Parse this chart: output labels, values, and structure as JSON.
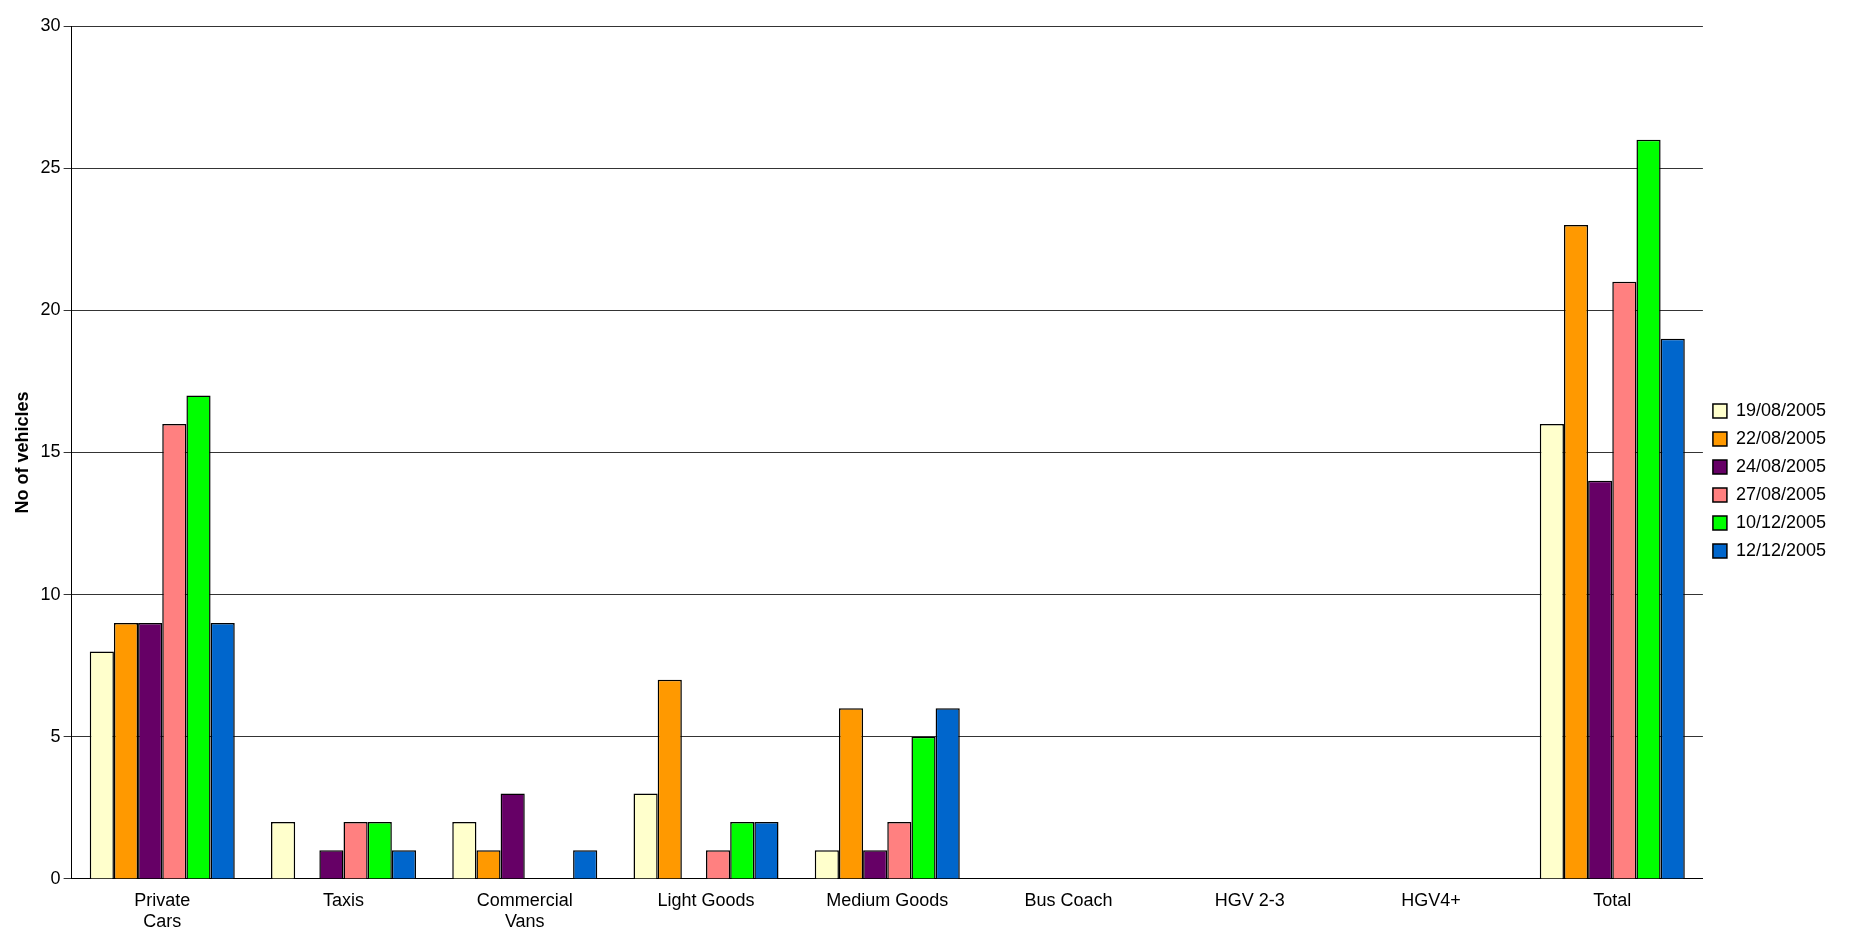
{
  "chart_data": {
    "type": "bar",
    "ylabel": "No of vehicles",
    "categories": [
      "Private Cars",
      "Taxis",
      "Commercial Vans",
      "Light Goods",
      "Medium Goods",
      "Bus Coach",
      "HGV 2-3",
      "HGV4+",
      "Total"
    ],
    "series": [
      {
        "name": "19/08/2005",
        "color": "#ffffcc",
        "values": [
          8,
          2,
          2,
          3,
          1,
          0,
          0,
          0,
          16
        ]
      },
      {
        "name": "22/08/2005",
        "color": "#ff9900",
        "values": [
          9,
          0,
          1,
          7,
          6,
          0,
          0,
          0,
          23
        ]
      },
      {
        "name": "24/08/2005",
        "color": "#660066",
        "values": [
          9,
          1,
          3,
          0,
          1,
          0,
          0,
          0,
          14
        ]
      },
      {
        "name": "27/08/2005",
        "color": "#ff8080",
        "values": [
          16,
          2,
          0,
          1,
          2,
          0,
          0,
          0,
          21
        ]
      },
      {
        "name": "10/12/2005",
        "color": "#00ff00",
        "values": [
          17,
          2,
          0,
          2,
          5,
          0,
          0,
          0,
          26
        ]
      },
      {
        "name": "12/12/2005",
        "color": "#0066cc",
        "values": [
          9,
          1,
          1,
          2,
          6,
          0,
          0,
          0,
          19
        ]
      }
    ],
    "ylim": [
      0,
      30
    ],
    "yticks": [
      0,
      5,
      10,
      15,
      20,
      25,
      30
    ],
    "grid": "y",
    "legend": "right"
  }
}
